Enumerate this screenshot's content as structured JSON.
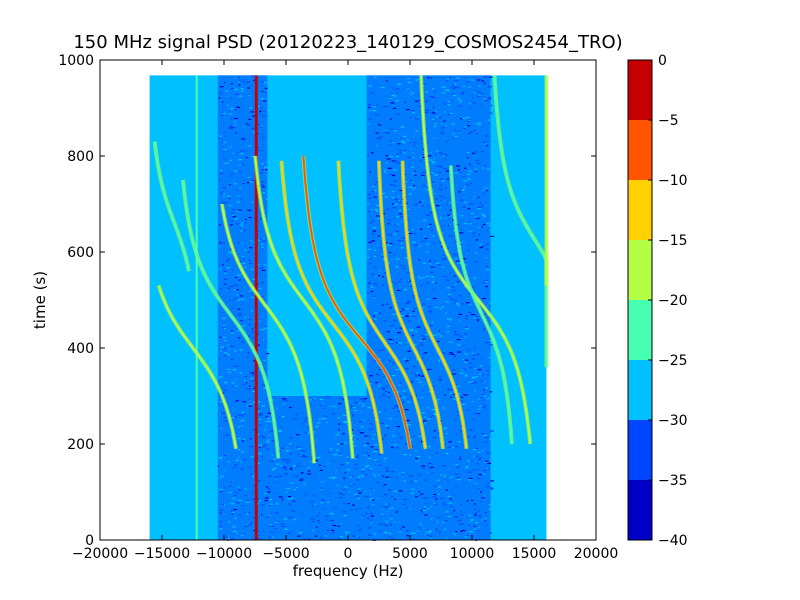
{
  "chart_data": {
    "type": "heatmap",
    "title": "150 MHz signal PSD (20120223_140129_COSMOS2454_TRO)",
    "xlabel": "frequency (Hz)",
    "ylabel": "time (s)",
    "xlim": [
      -20000,
      20000
    ],
    "ylim": [
      0,
      1000
    ],
    "x_ticks": [
      -20000,
      -15000,
      -10000,
      -5000,
      0,
      5000,
      10000,
      15000,
      20000
    ],
    "x_tick_labels": [
      "−20000",
      "−15000",
      "−10000",
      "−5000",
      "0",
      "5000",
      "10000",
      "15000",
      "20000"
    ],
    "y_ticks": [
      0,
      200,
      400,
      600,
      800,
      1000
    ],
    "y_tick_labels": [
      "0",
      "200",
      "400",
      "600",
      "800",
      "1000"
    ],
    "data_extent": {
      "x": [
        -16000,
        16000
      ],
      "y": [
        0,
        968
      ]
    },
    "background_level": -28,
    "colorbar": {
      "levels": [
        -40,
        -35,
        -30,
        -25,
        -20,
        -15,
        -10,
        -5,
        0
      ],
      "tick_labels": [
        "−40",
        "−35",
        "−30",
        "−25",
        "−20",
        "−15",
        "−10",
        "−5",
        "0"
      ],
      "colors": [
        "#0000c6",
        "#0046ff",
        "#00c0ff",
        "#47ffb0",
        "#b4ff46",
        "#ffd100",
        "#ff5500",
        "#c60000"
      ]
    },
    "dark_band_regions": [
      {
        "x": [
          -10500,
          -6500
        ],
        "y": [
          0,
          968
        ],
        "level": -32
      },
      {
        "x": [
          1500,
          11500
        ],
        "y": [
          0,
          968
        ],
        "level": -33
      },
      {
        "x": [
          -6500,
          1500
        ],
        "y": [
          0,
          300
        ],
        "level": -32
      }
    ],
    "constant_lines": [
      {
        "x": -12200,
        "y": [
          0,
          968
        ],
        "level": -24
      },
      {
        "x": -7400,
        "y": [
          0,
          968
        ],
        "level": -5
      }
    ],
    "doppler_traces": [
      {
        "f_end": -12500,
        "t_cross": 400,
        "shift": 5000,
        "t_start": 530,
        "t_end": 190,
        "level": -20
      },
      {
        "f_end": -9500,
        "t_cross": 470,
        "shift": 5000,
        "t_start": 750,
        "t_end": 170,
        "level": -21
      },
      {
        "f_end": -6700,
        "t_cross": 490,
        "shift": 5000,
        "t_start": 700,
        "t_end": 160,
        "level": -19
      },
      {
        "f_end": -3600,
        "t_cross": 500,
        "shift": 5000,
        "t_start": 800,
        "t_end": 170,
        "level": -17
      },
      {
        "f_end": -1200,
        "t_cross": 450,
        "shift": 5200,
        "t_start": 790,
        "t_end": 180,
        "level": -12
      },
      {
        "f_end": 1000,
        "t_cross": 420,
        "shift": 5600,
        "t_start": 800,
        "t_end": 190,
        "level": -10
      },
      {
        "f_end": 3000,
        "t_cross": 410,
        "shift": 4600,
        "t_start": 790,
        "t_end": 190,
        "level": -12
      },
      {
        "f_end": 5300,
        "t_cross": 400,
        "shift": 3400,
        "t_start": 790,
        "t_end": 190,
        "level": -14
      },
      {
        "f_end": 7200,
        "t_cross": 400,
        "shift": 3400,
        "t_start": 790,
        "t_end": 190,
        "level": -15
      },
      {
        "f_end": 10500,
        "t_cross": 500,
        "shift": 5400,
        "t_start": 968,
        "t_end": 200,
        "level": -18
      },
      {
        "f_end": 10800,
        "t_cross": 470,
        "shift": 3200,
        "t_start": 780,
        "t_end": 200,
        "level": -21
      },
      {
        "f_end": 15200,
        "t_cross": 620,
        "shift": 4200,
        "t_start": 968,
        "t_end": 360,
        "level": -21
      },
      {
        "f_end": -14000,
        "t_cross": 660,
        "shift": 2500,
        "t_start": 830,
        "t_end": 560,
        "level": -21
      },
      {
        "f_end": 18000,
        "t_cross": 780,
        "shift": 3000,
        "t_start": 968,
        "t_end": 530,
        "level": -20
      }
    ]
  }
}
